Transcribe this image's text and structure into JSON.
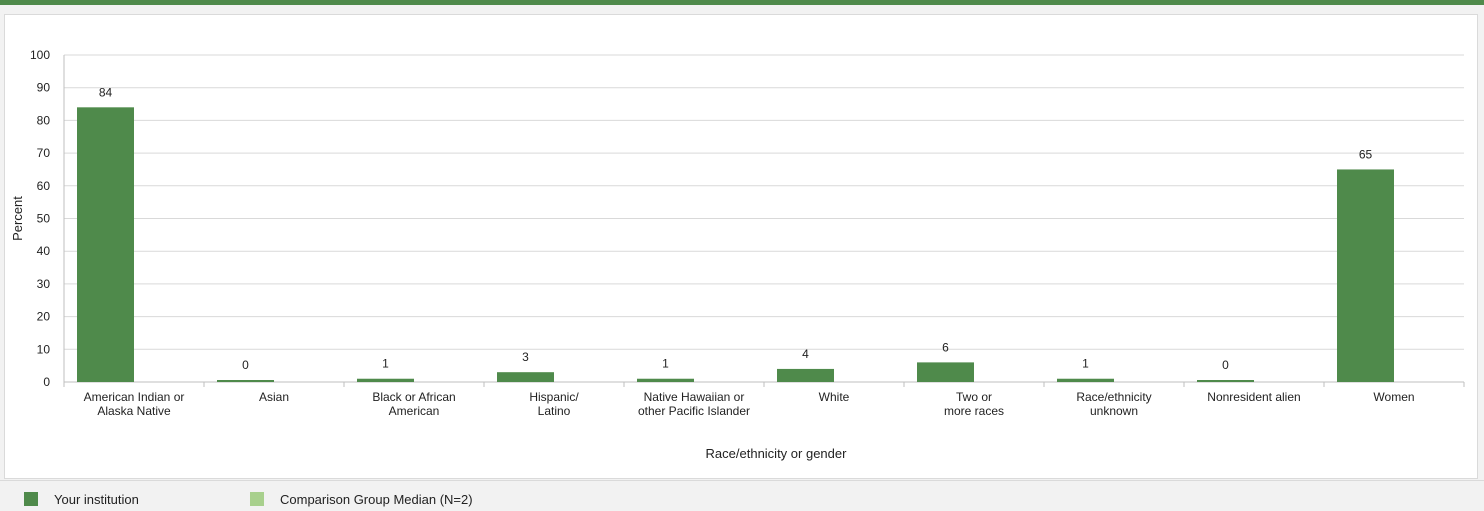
{
  "chart_data": {
    "type": "bar",
    "categories": [
      [
        "American Indian or",
        "Alaska Native"
      ],
      [
        "Asian"
      ],
      [
        "Black or African",
        "American"
      ],
      [
        "Hispanic/",
        "Latino"
      ],
      [
        "Native Hawaiian or",
        "other Pacific Islander"
      ],
      [
        "White"
      ],
      [
        "Two or",
        "more races"
      ],
      [
        "Race/ethnicity",
        "unknown"
      ],
      [
        "Nonresident alien"
      ],
      [
        "Women"
      ]
    ],
    "series": [
      {
        "name": "Your institution",
        "color": "#4f8a4b",
        "values": [
          84,
          0,
          1,
          3,
          1,
          4,
          6,
          1,
          0,
          65
        ],
        "labels": [
          "84",
          "0",
          "1",
          "3",
          "1",
          "4",
          "6",
          "1",
          "0",
          "65"
        ]
      },
      {
        "name": "Comparison Group Median (N=2)",
        "color": "#a8d08d",
        "values": [
          0,
          0,
          0,
          0,
          0,
          0,
          0,
          0,
          0,
          0
        ],
        "labels": []
      }
    ],
    "xlabel": "Race/ethnicity or gender",
    "ylabel": "Percent",
    "ylim": [
      0,
      100
    ],
    "yticks": [
      0,
      10,
      20,
      30,
      40,
      50,
      60,
      70,
      80,
      90,
      100
    ],
    "grid": true,
    "legend_position": "bottom-left"
  }
}
